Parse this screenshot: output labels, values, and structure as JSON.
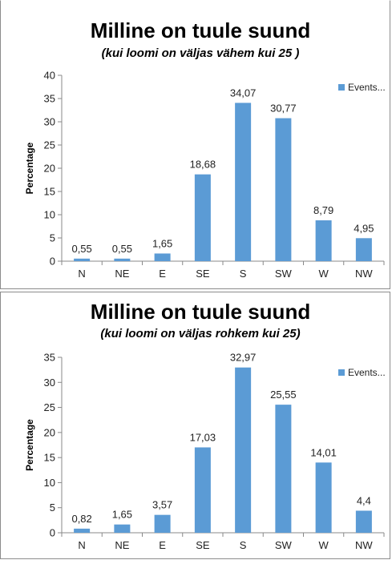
{
  "chart_data": [
    {
      "type": "bar",
      "title": "Milline on tuule suund",
      "subtitle": "(kui loomi on väljas vähem kui 25 )",
      "xlabel": "",
      "ylabel": "Percentage",
      "ylim": [
        0,
        40
      ],
      "yticks": [
        0,
        5,
        10,
        15,
        20,
        25,
        30,
        35,
        40
      ],
      "categories": [
        "N",
        "NE",
        "E",
        "SE",
        "S",
        "SW",
        "W",
        "NW"
      ],
      "series": [
        {
          "name": "Events...",
          "values": [
            0.55,
            0.55,
            1.65,
            18.68,
            34.07,
            30.77,
            8.79,
            4.95
          ],
          "labels": [
            "0,55",
            "0,55",
            "1,65",
            "18,68",
            "34,07",
            "30,77",
            "8,79",
            "4,95"
          ]
        }
      ],
      "legend_position": "top-right",
      "bar_color": "#5b9bd5",
      "grid": false
    },
    {
      "type": "bar",
      "title": "Milline on tuule suund",
      "subtitle": "(kui loomi on väljas rohkem kui 25)",
      "xlabel": "",
      "ylabel": "Percentage",
      "ylim": [
        0,
        35
      ],
      "yticks": [
        0,
        5,
        10,
        15,
        20,
        25,
        30,
        35
      ],
      "categories": [
        "N",
        "NE",
        "E",
        "SE",
        "S",
        "SW",
        "W",
        "NW"
      ],
      "series": [
        {
          "name": "Events...",
          "values": [
            0.82,
            1.65,
            3.57,
            17.03,
            32.97,
            25.55,
            14.01,
            4.4
          ],
          "labels": [
            "0,82",
            "1,65",
            "3,57",
            "17,03",
            "32,97",
            "25,55",
            "14,01",
            "4,4"
          ]
        }
      ],
      "legend_position": "top-right",
      "bar_color": "#5b9bd5",
      "grid": false
    }
  ]
}
